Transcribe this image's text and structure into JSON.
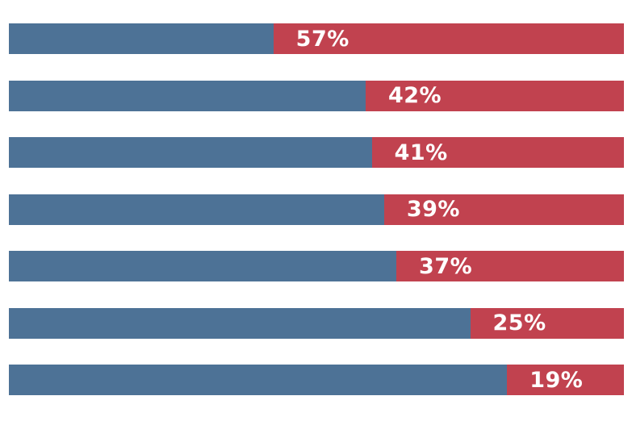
{
  "page": {
    "background": "#ffffff"
  },
  "chart_data": {
    "type": "bar",
    "subtype": "horizontal-stacked",
    "title": "",
    "xlabel": "",
    "ylabel": "",
    "xlim": [
      0,
      100
    ],
    "grid": false,
    "legend": false,
    "axis_labels_visible": false,
    "colors": {
      "blue": "#4d7296",
      "red": "#c1424f",
      "label": "#ffffff"
    },
    "series": [
      {
        "name": "blue-segment",
        "color": "#4d7296",
        "values": [
          43,
          58,
          59,
          61,
          63,
          75,
          81
        ]
      },
      {
        "name": "red-segment",
        "color": "#c1424f",
        "values": [
          57,
          42,
          41,
          39,
          37,
          25,
          19
        ]
      }
    ],
    "bars": [
      {
        "red_pct": 57,
        "blue_pct": 43,
        "label": "57%"
      },
      {
        "red_pct": 42,
        "blue_pct": 58,
        "label": "42%"
      },
      {
        "red_pct": 41,
        "blue_pct": 59,
        "label": "41%"
      },
      {
        "red_pct": 39,
        "blue_pct": 61,
        "label": "39%"
      },
      {
        "red_pct": 37,
        "blue_pct": 63,
        "label": "37%"
      },
      {
        "red_pct": 25,
        "blue_pct": 75,
        "label": "25%"
      },
      {
        "red_pct": 19,
        "blue_pct": 81,
        "label": "19%"
      }
    ]
  }
}
